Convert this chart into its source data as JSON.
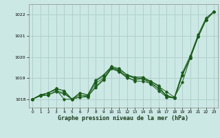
{
  "xlabel": "Graphe pression niveau de la mer (hPa)",
  "background_color": "#cce8e4",
  "grid_color": "#aaccc8",
  "line_color": "#1a5c1a",
  "xlim": [
    -0.5,
    23.5
  ],
  "ylim": [
    1017.6,
    1022.5
  ],
  "yticks": [
    1018,
    1019,
    1020,
    1021,
    1022
  ],
  "xticks": [
    0,
    1,
    2,
    3,
    4,
    5,
    6,
    7,
    8,
    9,
    10,
    11,
    12,
    13,
    14,
    15,
    16,
    17,
    18,
    19,
    20,
    21,
    22,
    23
  ],
  "series": [
    [
      1018.0,
      1018.2,
      1018.2,
      1018.4,
      1018.3,
      1018.0,
      1018.1,
      1018.15,
      1018.55,
      1018.9,
      1019.45,
      1019.3,
      1019.1,
      1019.0,
      1018.95,
      1018.85,
      1018.6,
      1018.35,
      1018.1,
      1019.25,
      1020.05,
      1021.05,
      1021.85,
      1022.15
    ],
    [
      1018.0,
      1018.15,
      1018.2,
      1018.35,
      1018.25,
      1018.0,
      1018.1,
      1018.1,
      1018.6,
      1018.95,
      1019.5,
      1019.35,
      1019.05,
      1018.85,
      1018.85,
      1018.75,
      1018.5,
      1018.2,
      1018.05,
      1019.15,
      1019.95,
      1020.95,
      1021.75,
      1022.15
    ],
    [
      1018.0,
      1018.2,
      1018.3,
      1018.45,
      1018.0,
      1018.0,
      1018.2,
      1018.15,
      1018.75,
      1019.0,
      1019.45,
      1019.3,
      1019.0,
      1018.9,
      1019.0,
      1018.7,
      1018.4,
      1018.1,
      1018.05,
      1019.15,
      1019.95,
      1020.95,
      1021.75,
      1022.15
    ],
    [
      1018.0,
      1018.2,
      1018.3,
      1018.5,
      1018.4,
      1018.0,
      1018.3,
      1018.2,
      1018.85,
      1019.1,
      1019.5,
      1019.4,
      1019.15,
      1019.0,
      1019.0,
      1018.8,
      1018.5,
      1018.15,
      1018.05,
      1019.15,
      1019.95,
      1020.95,
      1021.75,
      1022.15
    ],
    [
      1018.0,
      1018.2,
      1018.3,
      1018.5,
      1018.4,
      1018.0,
      1018.3,
      1018.2,
      1018.9,
      1019.15,
      1019.55,
      1019.45,
      1019.15,
      1019.05,
      1019.05,
      1018.85,
      1018.65,
      1018.1,
      1018.1,
      1018.8,
      1019.95,
      1020.95,
      1021.75,
      1022.15
    ]
  ]
}
